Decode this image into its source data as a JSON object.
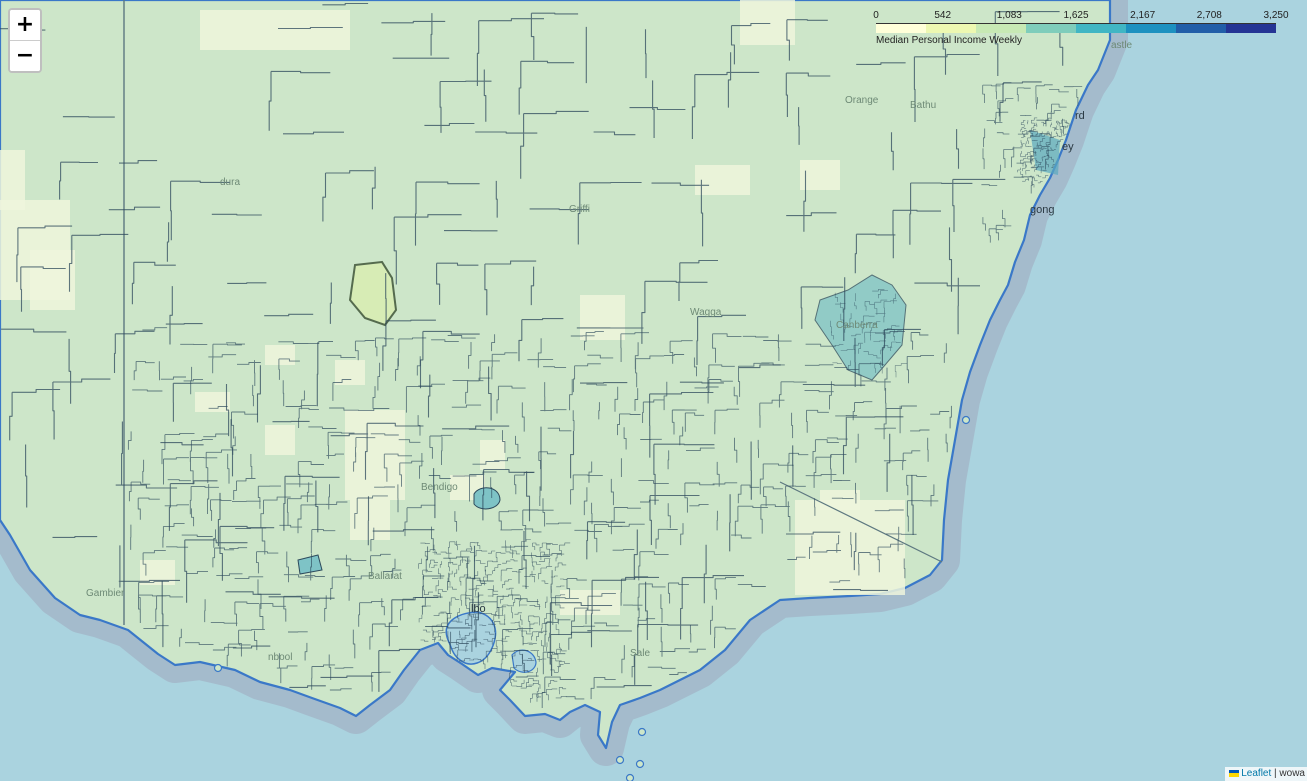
{
  "map": {
    "colors": {
      "ocean": "#aad3df",
      "land": "#cde6c9",
      "boundary": "#2d4a5c",
      "coast": "#3a78c8",
      "buffer": "#9a8fa8",
      "pale": "#eef5dc",
      "teal": "#7ec3c6",
      "selected": "#d7ecb5"
    }
  },
  "zoom": {
    "in_label": "+",
    "out_label": "−"
  },
  "legend": {
    "title": "Median Personal Income Weekly",
    "ticks": [
      "0",
      "542",
      "1,083",
      "1,625",
      "2,167",
      "2,708",
      "3,250"
    ],
    "colors": [
      "#ffffd9",
      "#edf8b1",
      "#c7e9b4",
      "#7fcdbb",
      "#41b6c4",
      "#1d91c0",
      "#225ea8",
      "#253494"
    ]
  },
  "place_labels": [
    {
      "id": "castle",
      "text": "astle"
    },
    {
      "id": "orange",
      "text": "Orange"
    },
    {
      "id": "bathurst",
      "text": "Bathu"
    },
    {
      "id": "richmond",
      "text": "rd"
    },
    {
      "id": "sydney",
      "text": "ey"
    },
    {
      "id": "wollongong",
      "text": "gong"
    },
    {
      "id": "griffith",
      "text": "Griffi"
    },
    {
      "id": "mildura",
      "text": "dura"
    },
    {
      "id": "wagga",
      "text": "Wagga"
    },
    {
      "id": "canberra",
      "text": "Canberra"
    },
    {
      "id": "bendigo",
      "text": "Bendigo"
    },
    {
      "id": "ballarat",
      "text": "Ballarat"
    },
    {
      "id": "melbourne",
      "text": "lbo"
    },
    {
      "id": "mt-gambier",
      "text": "Gambier"
    },
    {
      "id": "warrnambool",
      "text": "nbool"
    },
    {
      "id": "sale",
      "text": "Sale"
    }
  ],
  "attribution": {
    "leaflet": "Leaflet",
    "separator": " | ",
    "credit": "wowa"
  }
}
